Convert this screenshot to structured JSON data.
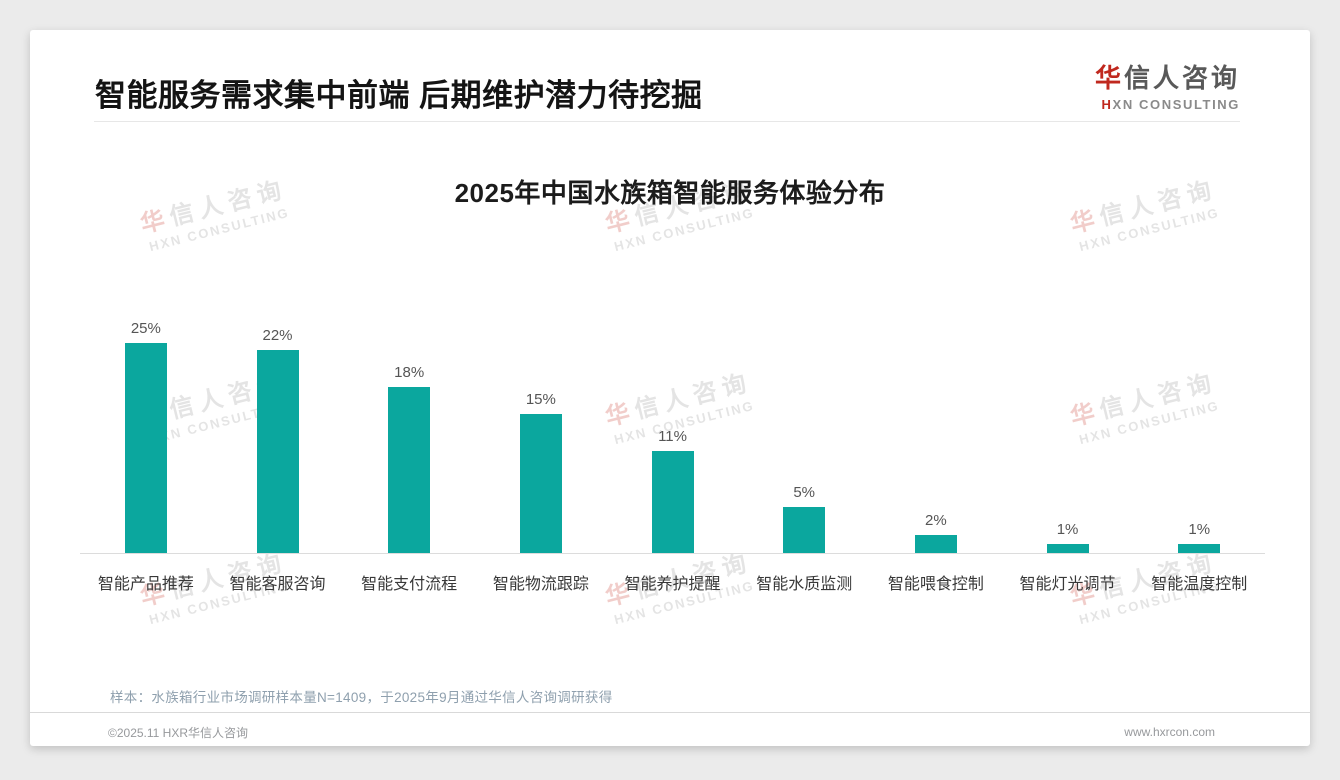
{
  "header": {
    "title": "智能服务需求集中前端 后期维护潜力待挖掘"
  },
  "logo": {
    "cn_highlight": "华",
    "cn_rest": "信人咨询",
    "en_highlight": "H",
    "en_rest": "XN CONSULTING"
  },
  "watermark": {
    "cn_highlight": "华",
    "cn_rest": "信人咨询",
    "en": "HXN CONSULTING"
  },
  "chart_data": {
    "type": "bar",
    "title": "2025年中国水族箱智能服务体验分布",
    "categories": [
      "智能产品推荐",
      "智能客服咨询",
      "智能支付流程",
      "智能物流跟踪",
      "智能养护提醒",
      "智能水质监测",
      "智能喂食控制",
      "智能灯光调节",
      "智能温度控制"
    ],
    "values": [
      25,
      22,
      18,
      15,
      11,
      5,
      2,
      1,
      1
    ],
    "unit": "%",
    "value_label_format": "value+%",
    "xlabel": "",
    "ylabel": "",
    "ylim": [
      0,
      25
    ],
    "grid": false,
    "legend": "none",
    "bar_color": "#0ba79e"
  },
  "note": {
    "text": "样本：水族箱行业市场调研样本量N=1409，于2025年9月通过华信人咨询调研获得"
  },
  "footer": {
    "copyright": "©2025.11 HXR华信人咨询",
    "website": "www.hxrcon.com"
  }
}
